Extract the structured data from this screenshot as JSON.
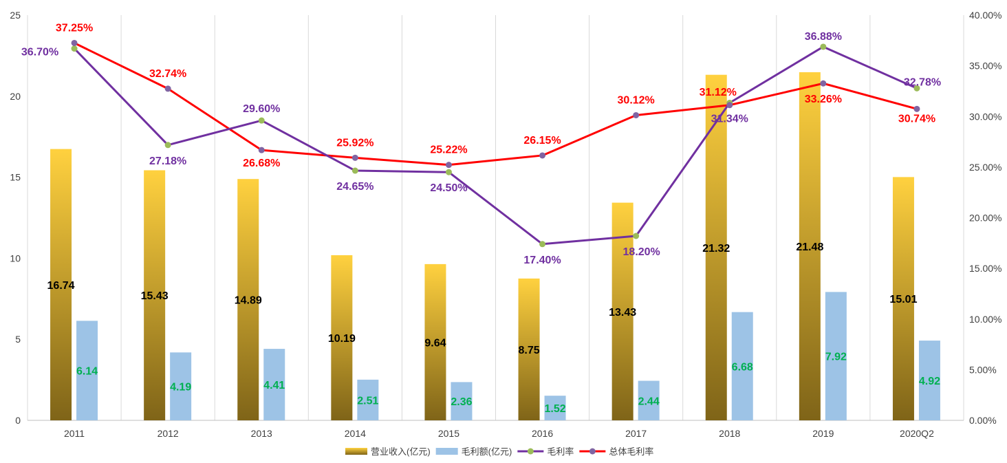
{
  "chart_data": {
    "type": "bar",
    "title": "",
    "categories": [
      "2011",
      "2012",
      "2013",
      "2014",
      "2015",
      "2016",
      "2017",
      "2018",
      "2019",
      "2020Q2"
    ],
    "series": [
      {
        "name": "营业收入(亿元)",
        "type": "bar",
        "axis": "left",
        "values": [
          16.74,
          15.43,
          14.89,
          10.19,
          9.64,
          8.75,
          13.43,
          21.32,
          21.48,
          15.01
        ],
        "labels": [
          "16.74",
          "15.43",
          "14.89",
          "10.19",
          "9.64",
          "8.75",
          "13.43",
          "21.32",
          "21.48",
          "15.01"
        ],
        "color_top": "#FFD13F",
        "color_bottom": "#7F6418"
      },
      {
        "name": "毛利额(亿元)",
        "type": "bar",
        "axis": "left",
        "values": [
          6.14,
          4.19,
          4.41,
          2.51,
          2.36,
          1.52,
          2.44,
          6.68,
          7.92,
          4.92
        ],
        "labels": [
          "6.14",
          "4.19",
          "4.41",
          "2.51",
          "2.36",
          "1.52",
          "2.44",
          "6.68",
          "7.92",
          "4.92"
        ],
        "color": "#9DC3E6",
        "label_color": "#00B050"
      },
      {
        "name": "毛利率",
        "type": "line",
        "axis": "right",
        "values": [
          36.7,
          27.18,
          29.6,
          24.65,
          24.5,
          17.4,
          18.2,
          31.34,
          36.88,
          32.78
        ],
        "labels": [
          "36.70%",
          "27.18%",
          "29.60%",
          "24.65%",
          "24.50%",
          "17.40%",
          "18.20%",
          "31.34%",
          "36.88%",
          "32.78%"
        ],
        "color": "#7030A0",
        "marker_color": "#9BBB59"
      },
      {
        "name": "总体毛利率",
        "type": "line",
        "axis": "right",
        "values": [
          37.25,
          32.74,
          26.68,
          25.92,
          25.22,
          26.15,
          30.12,
          31.12,
          33.26,
          30.74
        ],
        "labels": [
          "37.25%",
          "32.74%",
          "26.68%",
          "25.92%",
          "25.22%",
          "26.15%",
          "30.12%",
          "31.12%",
          "33.26%",
          "30.74%"
        ],
        "color": "#FF0000",
        "marker_color": "#8064A2"
      }
    ],
    "left_axis": {
      "range": [
        0,
        25
      ],
      "ticks": [
        0,
        5,
        10,
        15,
        20,
        25
      ],
      "tick_labels": [
        "0",
        "5",
        "10",
        "15",
        "20",
        "25"
      ]
    },
    "right_axis": {
      "range": [
        0,
        40
      ],
      "ticks": [
        0,
        5,
        10,
        15,
        20,
        25,
        30,
        35,
        40
      ],
      "tick_labels": [
        "0.00%",
        "5.00%",
        "10.00%",
        "15.00%",
        "20.00%",
        "25.00%",
        "30.00%",
        "35.00%",
        "40.00%"
      ]
    },
    "grid": "vertical category separators",
    "legend": {
      "position": "bottom",
      "entries": [
        "营业收入(亿元)",
        "毛利额(亿元)",
        "毛利率",
        "总体毛利率"
      ]
    }
  }
}
